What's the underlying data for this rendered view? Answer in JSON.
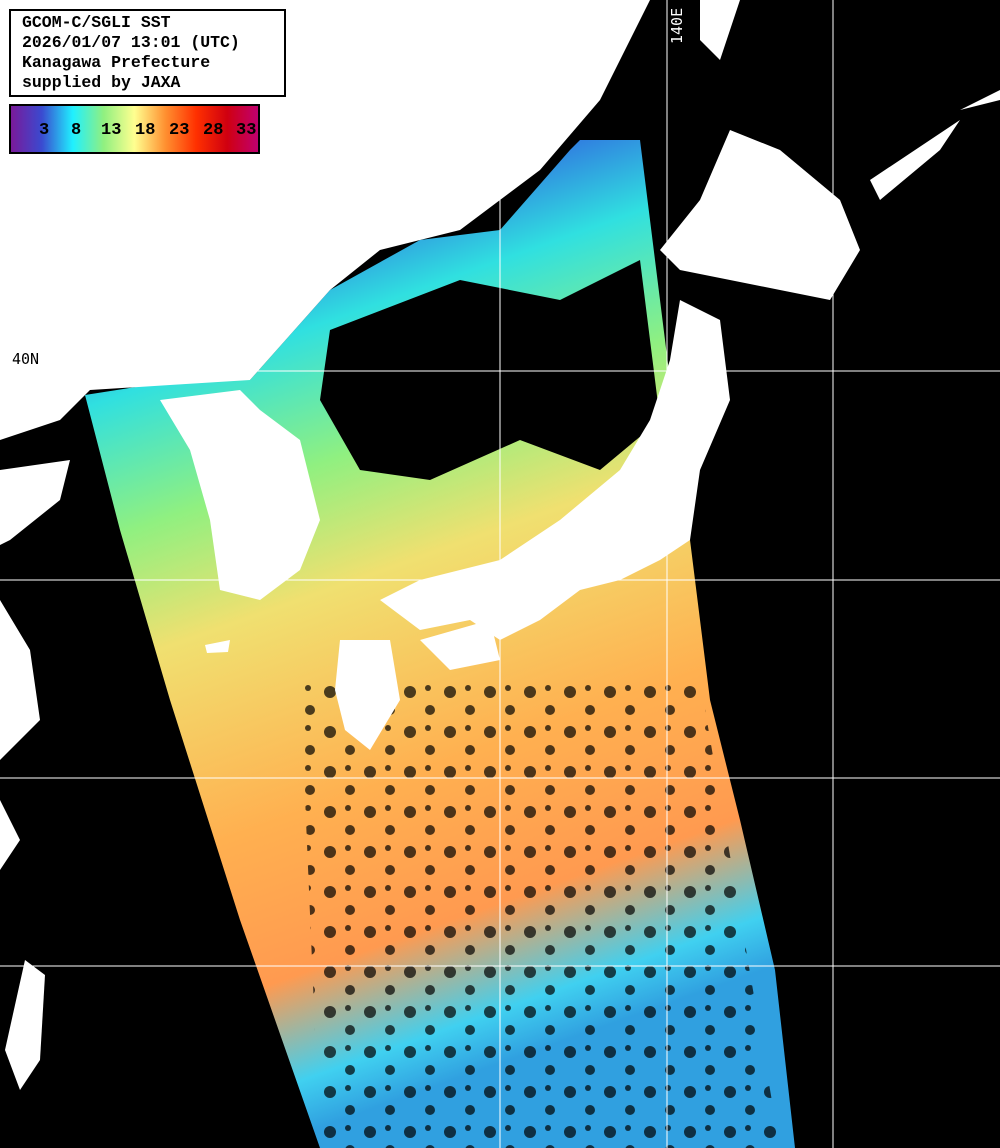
{
  "info": {
    "lines": [
      "GCOM-C/SGLI SST",
      "2026/01/07 13:01 (UTC)",
      "Kanagawa Prefecture",
      "supplied by JAXA"
    ]
  },
  "colorbar": {
    "unit_implied": "degC",
    "ticks": [
      "3",
      "8",
      "13",
      "18",
      "23",
      "28",
      "33"
    ],
    "colors": [
      "#7a1a9a",
      "#3a4ad0",
      "#20f0ff",
      "#90f080",
      "#ffff90",
      "#ff9030",
      "#ff3000",
      "#d00010",
      "#c00070"
    ]
  },
  "grid": {
    "lat_label": "40N",
    "lon_label": "140E"
  },
  "colors": {
    "land": "#ffffff",
    "no_data": "#000000",
    "grid": "#ffffff"
  }
}
